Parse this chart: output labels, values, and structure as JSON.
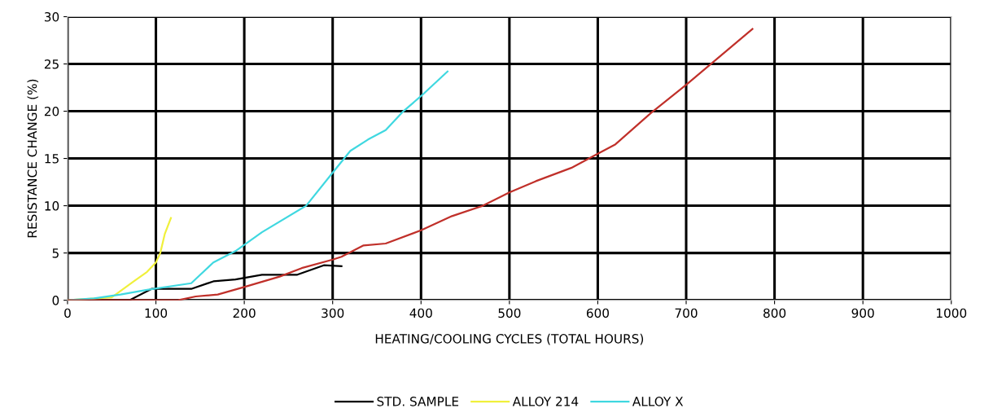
{
  "chart_data": {
    "type": "line",
    "xlabel": "HEATING/COOLING CYCLES (TOTAL HOURS)",
    "ylabel": "RESISTANCE CHANGE (%)",
    "xlim": [
      0,
      1000
    ],
    "xticks": [
      0,
      100,
      200,
      300,
      400,
      500,
      600,
      700,
      800,
      900,
      1000
    ],
    "ylim": [
      0,
      30
    ],
    "yticks": [
      0,
      5,
      10,
      15,
      20,
      25,
      30
    ],
    "grid": true,
    "legend": "bottom",
    "marker": "none",
    "line_style": "solid",
    "series": [
      {
        "name": "STD. SAMPLE",
        "color": "#000000",
        "x": [
          0,
          70,
          95,
          140,
          165,
          190,
          220,
          260,
          290,
          310
        ],
        "values": [
          0,
          0,
          1.2,
          1.2,
          2.0,
          2.2,
          2.7,
          2.7,
          3.7,
          3.6
        ]
      },
      {
        "name": "ALLOY 214",
        "color": "#f0f03c",
        "x": [
          0,
          50,
          75,
          90,
          100,
          105,
          110,
          117
        ],
        "values": [
          0,
          0.3,
          2,
          3,
          4,
          5,
          7,
          8.7
        ]
      },
      {
        "name": "ALLOY X",
        "color": "#40d8e0",
        "x": [
          0,
          30,
          60,
          90,
          140,
          165,
          190,
          220,
          270,
          300,
          320,
          340,
          360,
          380,
          400,
          430
        ],
        "values": [
          0,
          0.2,
          0.6,
          1.1,
          1.8,
          4,
          5.2,
          7.2,
          10,
          13.5,
          15.8,
          17,
          18,
          20,
          21.6,
          24.2
        ]
      },
      {
        "color": "#c0302a",
        "x": [
          0,
          125,
          145,
          170,
          200,
          240,
          265,
          300,
          310,
          335,
          360,
          400,
          435,
          470,
          500,
          530,
          570,
          600,
          620,
          660,
          700,
          775
        ],
        "values": [
          0,
          0,
          0.4,
          0.6,
          1.4,
          2.5,
          3.4,
          4.3,
          4.6,
          5.8,
          6,
          7.4,
          8.9,
          10,
          11.4,
          12.6,
          14,
          15.5,
          16.5,
          19.8,
          22.8,
          28.7
        ]
      }
    ]
  }
}
